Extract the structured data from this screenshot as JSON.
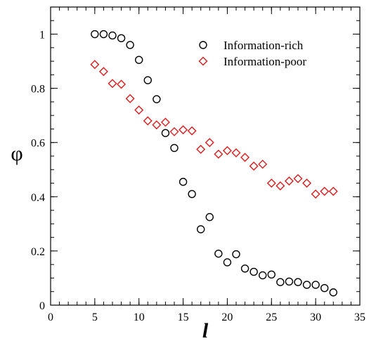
{
  "chart_data": {
    "type": "scatter",
    "xlabel": "l",
    "ylabel": "φ",
    "xlim": [
      0,
      35
    ],
    "ylim": [
      0,
      1.1
    ],
    "xticks": [
      0,
      5,
      10,
      15,
      20,
      25,
      30,
      35
    ],
    "yticks": [
      0,
      0.2,
      0.4,
      0.6,
      0.8,
      1
    ],
    "x_minor_step": 1,
    "y_minor_step": 0.05,
    "grid": false,
    "legend_position": "top-right",
    "series": [
      {
        "name": "Information-rich",
        "marker": "circle",
        "color": "#000000",
        "x": [
          5,
          6,
          7,
          8,
          9,
          10,
          11,
          12,
          13,
          14,
          15,
          16,
          17,
          18,
          19,
          20,
          21,
          22,
          23,
          24,
          25,
          26,
          27,
          28,
          29,
          30,
          31,
          32
        ],
        "y": [
          1.0,
          1.0,
          0.995,
          0.985,
          0.96,
          0.905,
          0.83,
          0.76,
          0.635,
          0.58,
          0.455,
          0.41,
          0.28,
          0.325,
          0.19,
          0.158,
          0.188,
          0.135,
          0.123,
          0.11,
          0.113,
          0.085,
          0.087,
          0.085,
          0.075,
          0.075,
          0.063,
          0.047
        ]
      },
      {
        "name": "Information-poor",
        "marker": "diamond",
        "color": "#e31a1c",
        "x": [
          5,
          6,
          7,
          8,
          9,
          10,
          11,
          12,
          13,
          14,
          15,
          16,
          17,
          18,
          19,
          20,
          21,
          22,
          23,
          24,
          25,
          26,
          27,
          28,
          29,
          30,
          31,
          32
        ],
        "y": [
          0.888,
          0.862,
          0.818,
          0.815,
          0.762,
          0.72,
          0.68,
          0.665,
          0.675,
          0.64,
          0.647,
          0.643,
          0.575,
          0.6,
          0.557,
          0.57,
          0.562,
          0.545,
          0.513,
          0.52,
          0.45,
          0.44,
          0.458,
          0.467,
          0.45,
          0.41,
          0.42,
          0.42
        ]
      }
    ]
  }
}
